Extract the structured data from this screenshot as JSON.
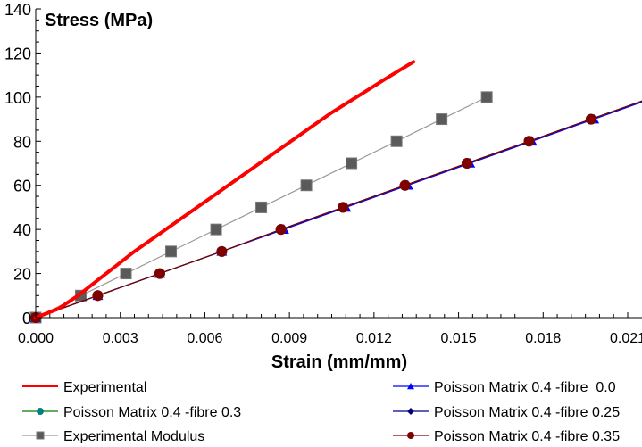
{
  "chart_data": {
    "type": "line",
    "title": "",
    "ylabel": "Stress (MPa)",
    "xlabel": "Strain (mm/mm)",
    "xlim": [
      0,
      0.022
    ],
    "ylim": [
      0,
      140
    ],
    "x_ticks": [
      "0.000",
      "0.003",
      "0.006",
      "0.009",
      "0.012",
      "0.015",
      "0.018",
      "0.021"
    ],
    "x_tick_values": [
      0,
      0.003,
      0.006,
      0.009,
      0.012,
      0.015,
      0.018,
      0.021
    ],
    "y_ticks": [
      "0",
      "20",
      "40",
      "60",
      "80",
      "100",
      "120",
      "140"
    ],
    "y_tick_values": [
      0,
      20,
      40,
      60,
      80,
      100,
      120,
      140
    ],
    "grid": false,
    "legend_placement": "bottom",
    "series": [
      {
        "name": "Experimental",
        "color": "#ff0000",
        "marker": "none",
        "x": [
          0,
          0.0008,
          0.0015,
          0.0025,
          0.0035,
          0.0045,
          0.0055,
          0.0065,
          0.0075,
          0.0085,
          0.0095,
          0.0105,
          0.0115,
          0.0125,
          0.0134
        ],
        "y": [
          0,
          4,
          10,
          20,
          30,
          39,
          48,
          57,
          66,
          75,
          84,
          93,
          101,
          109,
          116
        ]
      },
      {
        "name": "Poisson Matrix 0.4 -fibre 0.3",
        "color": "#008000",
        "marker_color": "#008080",
        "marker": "circle",
        "x": [
          0,
          0.0022,
          0.0044,
          0.0066,
          0.0087,
          0.0109,
          0.0131,
          0.0153,
          0.0175,
          0.0197,
          0.0219
        ],
        "y": [
          0,
          10,
          20,
          30,
          40,
          50,
          60,
          70,
          80,
          90,
          100
        ]
      },
      {
        "name": "Experimental Modulus",
        "color": "#999999",
        "marker_color": "#5a5a5a",
        "marker": "square",
        "x": [
          0,
          0.0016,
          0.0032,
          0.0048,
          0.0064,
          0.008,
          0.0096,
          0.0112,
          0.0128,
          0.0144,
          0.016
        ],
        "y": [
          0,
          10,
          20,
          30,
          40,
          50,
          60,
          70,
          80,
          90,
          100
        ]
      },
      {
        "name": "Poisson Matrix 0.4 -fibre  0.0",
        "color": "#0000ff",
        "marker_color": "#0000ff",
        "marker": "triangle",
        "x": [
          0,
          0.0022,
          0.0044,
          0.0066,
          0.0088,
          0.011,
          0.0132,
          0.0154,
          0.0176,
          0.0198,
          0.022
        ],
        "y": [
          0,
          10,
          20,
          30,
          40,
          50,
          60,
          70,
          80,
          90,
          100
        ]
      },
      {
        "name": "Poisson Matrix 0.4 -fibre 0.25",
        "color": "#000080",
        "marker_color": "#000080",
        "marker": "diamond",
        "x": [
          0,
          0.0022,
          0.0044,
          0.0066,
          0.0087,
          0.0109,
          0.0131,
          0.0153,
          0.0175,
          0.0197,
          0.0219
        ],
        "y": [
          0,
          10,
          20,
          30,
          40,
          50,
          60,
          70,
          80,
          90,
          100
        ]
      },
      {
        "name": "Poisson Matrix 0.4 -fibre 0.35",
        "color": "#800000",
        "marker_color": "#800000",
        "marker": "circle",
        "x": [
          0,
          0.0022,
          0.0044,
          0.0066,
          0.0087,
          0.0109,
          0.0131,
          0.0153,
          0.0175,
          0.0197,
          0.0219
        ],
        "y": [
          0,
          10,
          20,
          30,
          40,
          50,
          60,
          70,
          80,
          90,
          100
        ]
      }
    ]
  }
}
